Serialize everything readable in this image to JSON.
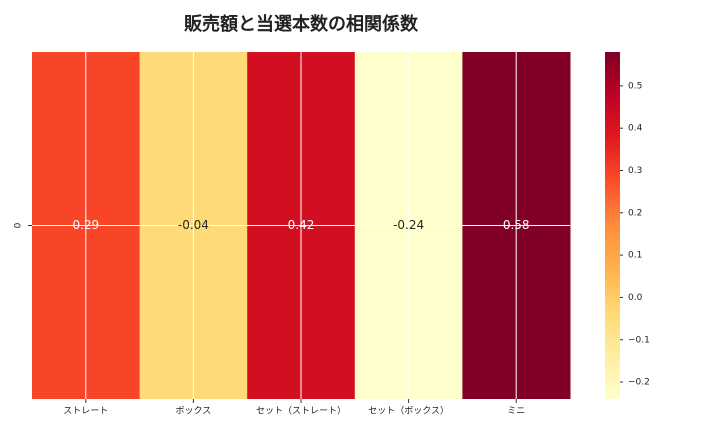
{
  "chart_data": {
    "type": "heatmap",
    "title": "販売額と当選本数の相関係数",
    "categories": [
      "ストレート",
      "ボックス",
      "セット（ストレート）",
      "セット（ボックス）",
      "ミニ"
    ],
    "rows": [
      "0"
    ],
    "values": [
      [
        0.29,
        -0.04,
        0.42,
        -0.24,
        0.58
      ]
    ],
    "colormap": [
      "#ffffcc",
      "#ffeda0",
      "#fed976",
      "#feb24c",
      "#fd8d3c",
      "#fc4e2a",
      "#e31a1c",
      "#bd0026",
      "#800026"
    ],
    "clim": [
      -0.24,
      0.58
    ],
    "cticks": [
      {
        "value": -0.2,
        "label": "−0.2"
      },
      {
        "value": -0.1,
        "label": "−0.1"
      },
      {
        "value": 0,
        "label": "0.0"
      },
      0.1,
      0.2,
      0.3,
      0.4,
      0.5
    ],
    "grid": true
  }
}
